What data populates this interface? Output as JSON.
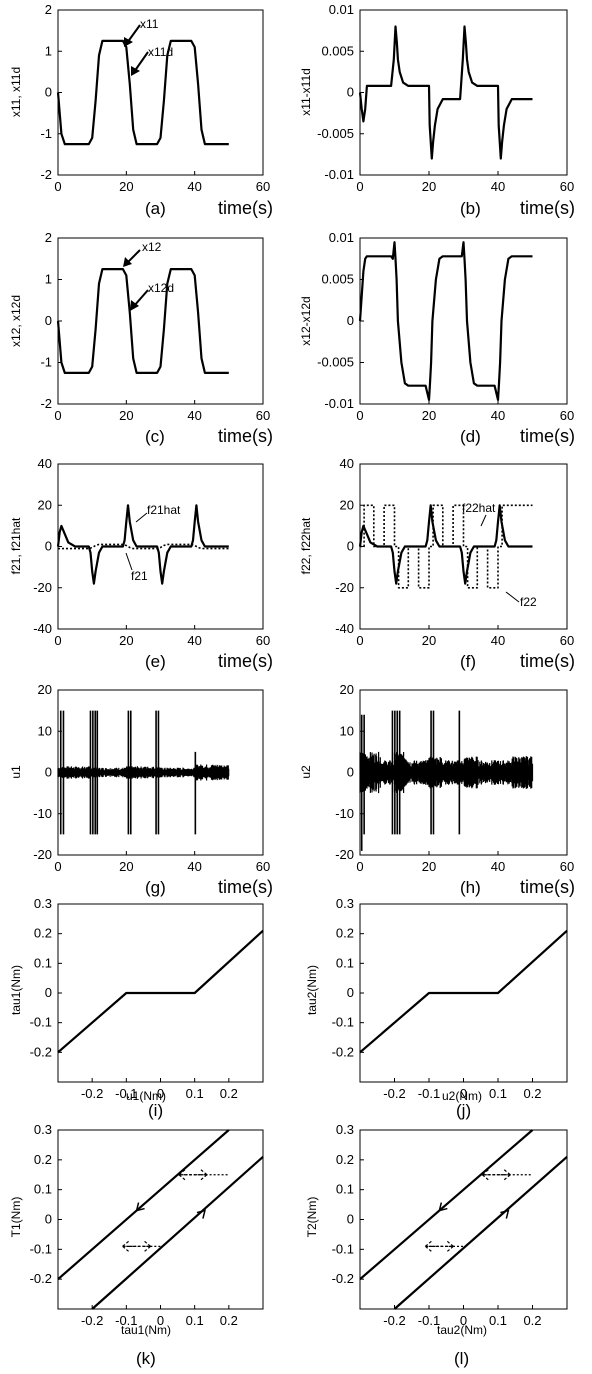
{
  "chart_data": [
    {
      "id": "a",
      "type": "line",
      "panel_label": "(a)",
      "ylabel": "x11, x11d",
      "xlabel": "time(s)",
      "xlim": [
        0,
        60
      ],
      "ylim": [
        -2,
        2
      ],
      "xticks": [
        0,
        20,
        40,
        60
      ],
      "yticks": [
        -2,
        -1,
        0,
        1,
        2
      ],
      "annotations": [
        "x11",
        "x11d"
      ],
      "series": [
        {
          "name": "x11",
          "x": [
            0,
            1,
            2,
            3,
            4,
            8,
            9,
            10,
            11,
            12,
            13,
            18,
            19,
            20,
            21,
            22,
            23,
            28,
            29,
            30,
            31,
            32,
            33,
            38,
            39,
            40,
            41,
            42,
            43,
            48,
            49,
            50
          ],
          "y": [
            0,
            -1.0,
            -1.25,
            -1.25,
            -1.25,
            -1.25,
            -1.25,
            -1.1,
            -0.2,
            0.9,
            1.25,
            1.25,
            1.25,
            1.1,
            0.2,
            -0.9,
            -1.25,
            -1.25,
            -1.25,
            -1.1,
            -0.2,
            0.9,
            1.25,
            1.25,
            1.25,
            1.1,
            0.2,
            -0.9,
            -1.25,
            -1.25,
            -1.25,
            -1.25
          ]
        }
      ]
    },
    {
      "id": "b",
      "type": "line",
      "panel_label": "(b)",
      "ylabel": "x11-x11d",
      "xlabel": "time(s)",
      "xlim": [
        0,
        60
      ],
      "ylim": [
        -0.01,
        0.01
      ],
      "xticks": [
        0,
        20,
        40,
        60
      ],
      "yticks": [
        -0.01,
        -0.005,
        0,
        0.005,
        0.01
      ],
      "series": [
        {
          "name": "x11-x11d",
          "x": [
            0,
            0.5,
            1,
            1.5,
            2,
            3,
            9,
            9.8,
            10.3,
            10.7,
            11,
            11.5,
            12.5,
            14,
            20,
            20.2,
            20.8,
            21.2,
            21.7,
            22.5,
            24,
            29,
            29.8,
            30.3,
            30.7,
            31,
            31.5,
            32.5,
            34,
            40,
            40.2,
            40.8,
            41.2,
            41.7,
            42.5,
            44,
            50
          ],
          "y": [
            0,
            -0.002,
            -0.0035,
            -0.002,
            0.0008,
            0.0008,
            0.0008,
            0.004,
            0.008,
            0.006,
            0.004,
            0.0025,
            0.0012,
            0.0008,
            0.0008,
            -0.004,
            -0.008,
            -0.006,
            -0.004,
            -0.002,
            -0.0008,
            -0.0008,
            0.004,
            0.008,
            0.006,
            0.004,
            0.0025,
            0.0012,
            0.0008,
            0.0008,
            -0.004,
            -0.008,
            -0.006,
            -0.004,
            -0.002,
            -0.0008,
            -0.0008
          ]
        }
      ]
    },
    {
      "id": "c",
      "type": "line",
      "panel_label": "(c)",
      "ylabel": "x12, x12d",
      "xlabel": "time(s)",
      "xlim": [
        0,
        60
      ],
      "ylim": [
        -2,
        2
      ],
      "xticks": [
        0,
        20,
        40,
        60
      ],
      "yticks": [
        -2,
        -1,
        0,
        1,
        2
      ],
      "annotations": [
        "x12",
        "x12d"
      ],
      "series": [
        {
          "name": "x12",
          "x": [
            0,
            1,
            2,
            3,
            4,
            8,
            9,
            10,
            11,
            12,
            13,
            18,
            19,
            20,
            21,
            22,
            23,
            28,
            29,
            30,
            31,
            32,
            33,
            38,
            39,
            40,
            41,
            42,
            43,
            48,
            49,
            50
          ],
          "y": [
            0,
            -1.0,
            -1.25,
            -1.25,
            -1.25,
            -1.25,
            -1.25,
            -1.1,
            -0.2,
            0.9,
            1.25,
            1.25,
            1.25,
            1.1,
            0.2,
            -0.9,
            -1.25,
            -1.25,
            -1.25,
            -1.1,
            -0.2,
            0.9,
            1.25,
            1.25,
            1.25,
            1.1,
            0.2,
            -0.9,
            -1.25,
            -1.25,
            -1.25,
            -1.25
          ]
        }
      ]
    },
    {
      "id": "d",
      "type": "line",
      "panel_label": "(d)",
      "ylabel": "x12-x12d",
      "xlabel": "time(s)",
      "xlim": [
        0,
        60
      ],
      "ylim": [
        -0.01,
        0.01
      ],
      "xticks": [
        0,
        20,
        40,
        60
      ],
      "yticks": [
        -0.01,
        -0.005,
        0,
        0.005,
        0.01
      ],
      "series": [
        {
          "name": "x12-x12d",
          "x": [
            0,
            0.5,
            1,
            1.5,
            2,
            3,
            9,
            9.5,
            10,
            10.3,
            10.6,
            11,
            12,
            13,
            14,
            19,
            20,
            20.3,
            20.6,
            21,
            22,
            23,
            24,
            29,
            29.5,
            30,
            30.3,
            30.6,
            31,
            32,
            33,
            34,
            39,
            40,
            40.3,
            40.6,
            41,
            42,
            43,
            44,
            50
          ],
          "y": [
            0,
            0.003,
            0.006,
            0.0075,
            0.0078,
            0.0078,
            0.0078,
            0.0075,
            0.0095,
            0.0075,
            0.005,
            0.0,
            -0.005,
            -0.0075,
            -0.0078,
            -0.0078,
            -0.0095,
            -0.0075,
            -0.005,
            0.0,
            0.005,
            0.0075,
            0.0078,
            0.0078,
            0.0078,
            0.0095,
            0.0075,
            0.005,
            0.0,
            -0.005,
            -0.0075,
            -0.0078,
            -0.0078,
            -0.0095,
            -0.0075,
            -0.005,
            0.0,
            0.005,
            0.0075,
            0.0078,
            0.0078
          ]
        }
      ]
    },
    {
      "id": "e",
      "type": "line",
      "panel_label": "(e)",
      "ylabel": "f21, f21hat",
      "xlabel": "time(s)",
      "xlim": [
        0,
        60
      ],
      "ylim": [
        -40,
        40
      ],
      "xticks": [
        0,
        20,
        40,
        60
      ],
      "yticks": [
        -40,
        -20,
        0,
        20,
        40
      ],
      "annotations": [
        "f21hat",
        "f21"
      ],
      "series": [
        {
          "name": "f21hat",
          "style": "solid",
          "x": [
            0,
            0.5,
            1,
            2,
            3,
            5,
            9,
            9.5,
            10,
            10.5,
            11,
            12,
            13,
            19,
            19.5,
            20,
            20.5,
            21,
            22,
            23,
            29,
            29.5,
            30,
            30.5,
            31,
            32,
            33,
            39,
            39.5,
            40,
            40.5,
            41,
            42,
            43,
            50
          ],
          "y": [
            0,
            7,
            10,
            6,
            2,
            0,
            0,
            -3,
            -12,
            -18,
            -12,
            -3,
            0,
            0,
            3,
            12,
            20,
            12,
            3,
            0,
            0,
            -3,
            -12,
            -18,
            -12,
            -3,
            0,
            0,
            3,
            12,
            20,
            12,
            3,
            0,
            0
          ]
        },
        {
          "name": "f21",
          "style": "dotted",
          "x": [
            0,
            5,
            9,
            10,
            11,
            12,
            19,
            20,
            21,
            22,
            29,
            30,
            31,
            32,
            39,
            40,
            41,
            42,
            50
          ],
          "y": [
            -1,
            -1,
            -1,
            -0.5,
            0.5,
            1,
            1,
            0.5,
            -0.5,
            -1,
            -1,
            -0.5,
            0.5,
            1,
            1,
            0.5,
            -0.5,
            -1,
            -1
          ]
        }
      ]
    },
    {
      "id": "f",
      "type": "line",
      "panel_label": "(f)",
      "ylabel": "f22, f22hat",
      "xlabel": "time(s)",
      "xlim": [
        0,
        60
      ],
      "ylim": [
        -40,
        40
      ],
      "xticks": [
        0,
        20,
        40,
        60
      ],
      "yticks": [
        -40,
        -20,
        0,
        20,
        40
      ],
      "annotations": [
        "f22hat",
        "f22"
      ],
      "series": [
        {
          "name": "f22hat",
          "style": "solid",
          "x": [
            0,
            0.5,
            1,
            2,
            3,
            5,
            9,
            9.5,
            10,
            10.5,
            11,
            12,
            13,
            19,
            19.5,
            20,
            20.5,
            21,
            22,
            23,
            29,
            29.5,
            30,
            30.5,
            31,
            32,
            33,
            39,
            39.5,
            40,
            40.5,
            41,
            42,
            43,
            50
          ],
          "y": [
            0,
            7,
            10,
            6,
            2,
            0,
            0,
            -3,
            -12,
            -18,
            -12,
            -3,
            0,
            0,
            3,
            12,
            20,
            12,
            3,
            0,
            0,
            -3,
            -12,
            -18,
            -12,
            -3,
            0,
            0,
            3,
            12,
            20,
            12,
            3,
            0,
            0
          ]
        },
        {
          "name": "f22",
          "style": "dotted",
          "x": [
            0,
            1.2,
            1.2,
            4,
            4,
            7,
            7,
            10,
            10,
            11.2,
            11.2,
            14,
            14,
            17,
            17,
            20,
            20,
            21.2,
            21.2,
            24,
            24,
            27,
            27,
            30,
            30,
            31.2,
            31.2,
            34,
            34,
            37,
            37,
            40,
            40,
            41.2,
            41.2,
            44,
            44,
            50
          ],
          "y": [
            0,
            0,
            20,
            20,
            0,
            0,
            20,
            20,
            0,
            0,
            -20,
            -20,
            0,
            0,
            -20,
            -20,
            0,
            0,
            20,
            20,
            0,
            0,
            20,
            20,
            0,
            0,
            -20,
            -20,
            0,
            0,
            -20,
            -20,
            0,
            0,
            20,
            20,
            20,
            20
          ]
        }
      ]
    },
    {
      "id": "g",
      "type": "line",
      "panel_label": "(g)",
      "ylabel": "u1",
      "xlabel": "time(s)",
      "xlim": [
        0,
        60
      ],
      "ylim": [
        -20,
        20
      ],
      "xticks": [
        0,
        20,
        40,
        60
      ],
      "yticks": [
        -20,
        -10,
        0,
        10,
        20
      ],
      "series": [
        {
          "name": "u1",
          "x": [
            0,
            50
          ],
          "y": [
            0,
            0
          ]
        }
      ],
      "spikes": [
        [
          0.8,
          15,
          -15
        ],
        [
          1.6,
          15,
          -15
        ],
        [
          9.5,
          15,
          -15
        ],
        [
          10.2,
          15,
          -15
        ],
        [
          10.9,
          15,
          -15
        ],
        [
          11.5,
          15,
          -15
        ],
        [
          20.6,
          15,
          -15
        ],
        [
          21.3,
          15,
          -15
        ],
        [
          28.7,
          15,
          -15
        ],
        [
          29.4,
          15,
          -15
        ],
        [
          40.2,
          5,
          -15
        ]
      ],
      "noise_band": [
        [
          0,
          10,
          1.5
        ],
        [
          10,
          20,
          1.2
        ],
        [
          20,
          30,
          1.5
        ],
        [
          30,
          40,
          1.2
        ],
        [
          40,
          50,
          2.0
        ]
      ]
    },
    {
      "id": "h",
      "type": "line",
      "panel_label": "(h)",
      "ylabel": "u2",
      "xlabel": "time(s)",
      "xlim": [
        0,
        60
      ],
      "ylim": [
        -20,
        20
      ],
      "xticks": [
        0,
        20,
        40,
        60
      ],
      "yticks": [
        -20,
        -10,
        0,
        10,
        20
      ],
      "series": [
        {
          "name": "u2",
          "x": [
            0,
            50
          ],
          "y": [
            0,
            0
          ]
        }
      ],
      "spikes": [
        [
          0.5,
          14,
          -19
        ],
        [
          1.2,
          14,
          -15
        ],
        [
          9.4,
          15,
          -15
        ],
        [
          10.1,
          15,
          -15
        ],
        [
          10.8,
          15,
          -15
        ],
        [
          11.5,
          15,
          -15
        ],
        [
          20.6,
          15,
          -15
        ],
        [
          21.3,
          15,
          -15
        ],
        [
          28.8,
          15,
          -15
        ]
      ],
      "noise_band": [
        [
          0,
          6,
          5
        ],
        [
          6,
          10,
          3
        ],
        [
          10,
          14,
          5
        ],
        [
          14,
          20,
          3
        ],
        [
          20,
          24,
          4
        ],
        [
          24,
          30,
          3
        ],
        [
          30,
          34,
          4
        ],
        [
          34,
          40,
          3
        ],
        [
          40,
          44,
          3
        ],
        [
          44,
          50,
          4
        ]
      ]
    },
    {
      "id": "i",
      "type": "line",
      "panel_label": "(i)",
      "ylabel": "tau1(Nm)",
      "xlabel": "u1(Nm)",
      "xlim": [
        -0.3,
        0.3
      ],
      "ylim": [
        -0.3,
        0.3
      ],
      "xticks": [
        -0.2,
        -0.1,
        0,
        0.1,
        0.2
      ],
      "yticks": [
        -0.2,
        -0.1,
        0,
        0.1,
        0.2,
        0.3
      ],
      "series": [
        {
          "name": "tau1",
          "x": [
            -0.3,
            -0.1,
            0.1,
            0.3
          ],
          "y": [
            -0.2,
            0,
            0,
            0.21
          ]
        }
      ]
    },
    {
      "id": "j",
      "type": "line",
      "panel_label": "(j)",
      "ylabel": "tau2(Nm)",
      "xlabel": "u2(Nm)",
      "xlim": [
        -0.3,
        0.3
      ],
      "ylim": [
        -0.3,
        0.3
      ],
      "xticks": [
        -0.2,
        -0.1,
        0,
        0.1,
        0.2
      ],
      "yticks": [
        -0.2,
        -0.1,
        0,
        0.1,
        0.2,
        0.3
      ],
      "series": [
        {
          "name": "tau2",
          "x": [
            -0.3,
            -0.1,
            0.1,
            0.3
          ],
          "y": [
            -0.2,
            0,
            0,
            0.21
          ]
        }
      ]
    },
    {
      "id": "k",
      "type": "line",
      "panel_label": "(k)",
      "ylabel": "T1(Nm)",
      "xlabel": "tau1(Nm)",
      "xlim": [
        -0.3,
        0.3
      ],
      "ylim": [
        -0.3,
        0.3
      ],
      "xticks": [
        -0.2,
        -0.1,
        0,
        0.1,
        0.2
      ],
      "yticks": [
        -0.2,
        -0.1,
        0,
        0.1,
        0.2,
        0.3
      ],
      "series": [
        {
          "name": "upper",
          "x": [
            -0.3,
            0.2
          ],
          "y": [
            -0.2,
            0.3
          ]
        },
        {
          "name": "lower",
          "x": [
            -0.2,
            0.3
          ],
          "y": [
            -0.3,
            0.21
          ]
        }
      ],
      "dotted_segments": [
        [
          0.05,
          0.15,
          0.2,
          0.15
        ],
        [
          -0.1,
          -0.09,
          0.0,
          -0.09
        ]
      ]
    },
    {
      "id": "l",
      "type": "line",
      "panel_label": "(l)",
      "ylabel": "T2(Nm)",
      "xlabel": "tau2(Nm)",
      "xlim": [
        -0.3,
        0.3
      ],
      "ylim": [
        -0.3,
        0.3
      ],
      "xticks": [
        -0.2,
        -0.1,
        0,
        0.1,
        0.2
      ],
      "yticks": [
        -0.2,
        -0.1,
        0,
        0.1,
        0.2,
        0.3
      ],
      "series": [
        {
          "name": "upper",
          "x": [
            -0.3,
            0.2
          ],
          "y": [
            -0.2,
            0.3
          ]
        },
        {
          "name": "lower",
          "x": [
            -0.2,
            0.3
          ],
          "y": [
            -0.3,
            0.21
          ]
        }
      ],
      "dotted_segments": [
        [
          0.05,
          0.15,
          0.2,
          0.15
        ],
        [
          -0.1,
          -0.09,
          0.0,
          -0.09
        ]
      ]
    }
  ]
}
